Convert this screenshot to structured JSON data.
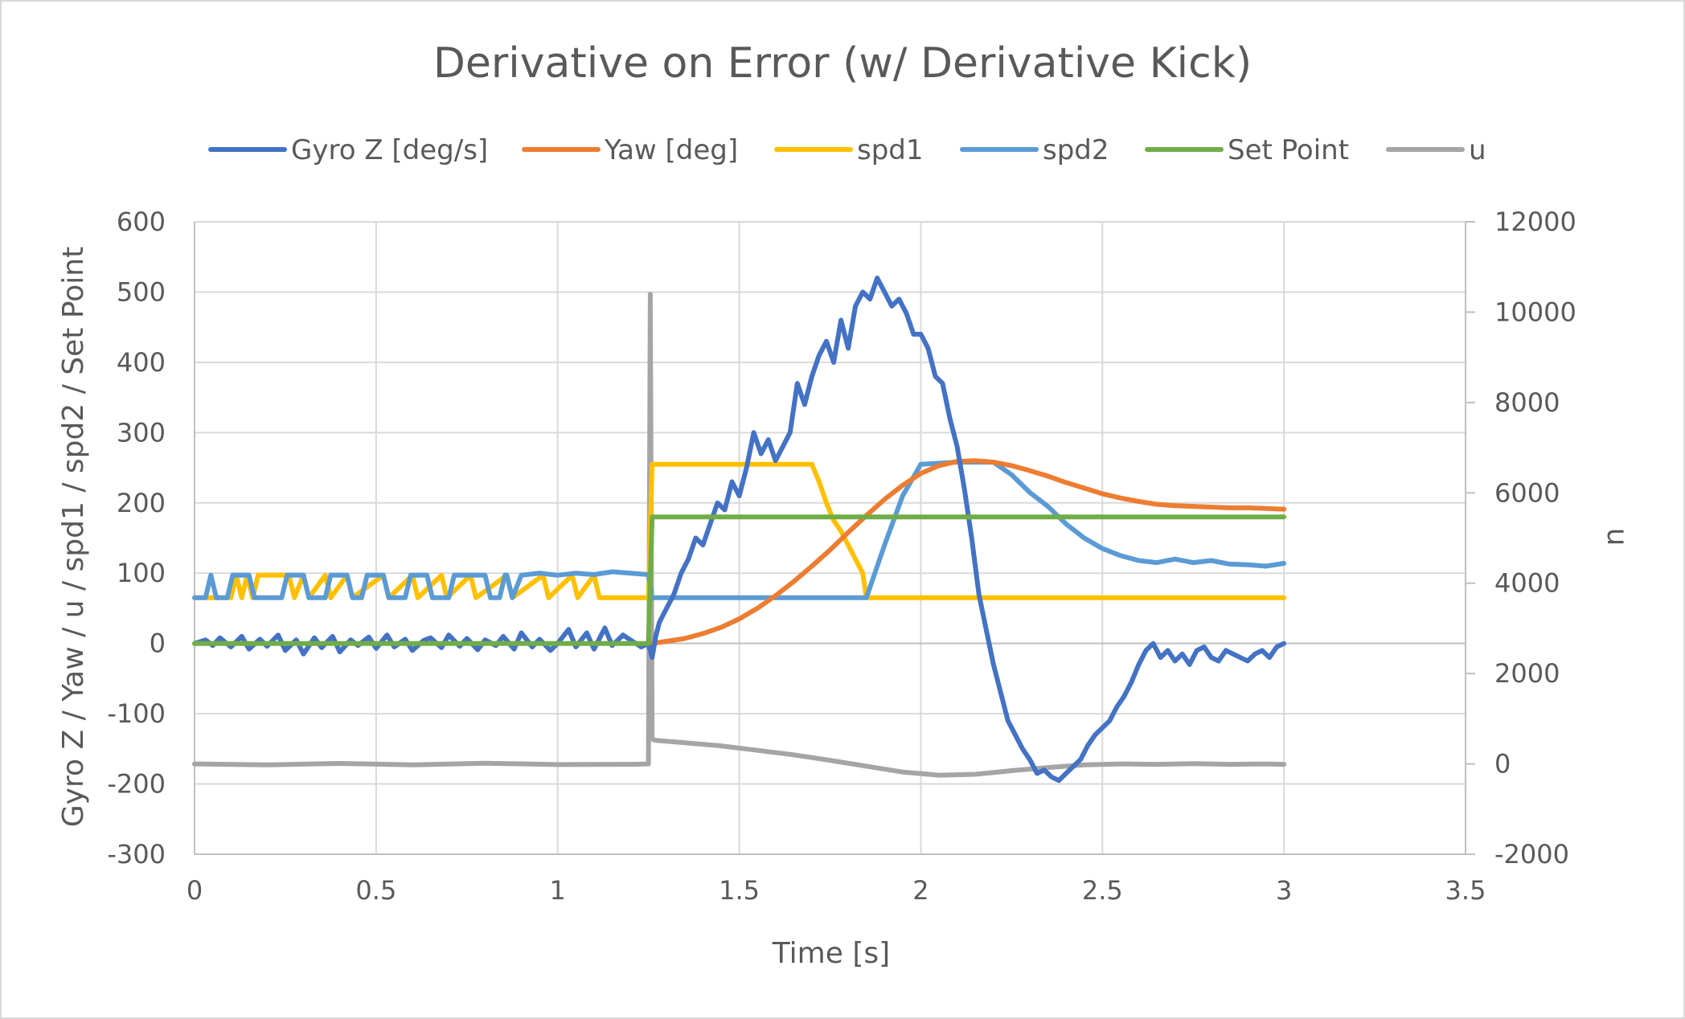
{
  "chart_data": {
    "type": "line",
    "title": "Derivative on Error (w/ Derivative Kick)",
    "xlabel": "Time [s]",
    "ylabel": "Gyro Z / Yaw / u / spd1 / spd2 / Set Point",
    "y2label": "u",
    "xlim": [
      0,
      3.5
    ],
    "ylim": [
      -300,
      600
    ],
    "y2lim": [
      -2000,
      12000
    ],
    "x_ticks": [
      "0",
      "0.5",
      "1",
      "1.5",
      "2",
      "2.5",
      "3",
      "3.5"
    ],
    "y_ticks": [
      "600",
      "500",
      "400",
      "300",
      "200",
      "100",
      "0",
      "-100",
      "-200",
      "-300"
    ],
    "y2_ticks": [
      "12000",
      "10000",
      "8000",
      "6000",
      "4000",
      "2000",
      "0",
      "-2000"
    ],
    "grid": true,
    "legend_position": "top",
    "series": [
      {
        "name": "Gyro Z [deg/s]",
        "color": "#4472c4",
        "axis": "left",
        "x": [
          0,
          0.03,
          0.05,
          0.07,
          0.1,
          0.13,
          0.15,
          0.18,
          0.2,
          0.23,
          0.25,
          0.28,
          0.3,
          0.33,
          0.35,
          0.38,
          0.4,
          0.43,
          0.45,
          0.48,
          0.5,
          0.53,
          0.55,
          0.58,
          0.6,
          0.63,
          0.65,
          0.68,
          0.7,
          0.73,
          0.75,
          0.78,
          0.8,
          0.83,
          0.85,
          0.88,
          0.9,
          0.93,
          0.95,
          0.98,
          1.0,
          1.03,
          1.05,
          1.08,
          1.1,
          1.13,
          1.15,
          1.18,
          1.2,
          1.23,
          1.25,
          1.26,
          1.27,
          1.28,
          1.3,
          1.32,
          1.34,
          1.36,
          1.38,
          1.4,
          1.42,
          1.44,
          1.46,
          1.48,
          1.5,
          1.52,
          1.54,
          1.56,
          1.58,
          1.6,
          1.62,
          1.64,
          1.66,
          1.68,
          1.7,
          1.72,
          1.74,
          1.76,
          1.78,
          1.8,
          1.82,
          1.84,
          1.86,
          1.88,
          1.9,
          1.92,
          1.94,
          1.96,
          1.98,
          2.0,
          2.02,
          2.04,
          2.06,
          2.08,
          2.1,
          2.12,
          2.14,
          2.16,
          2.18,
          2.2,
          2.22,
          2.24,
          2.26,
          2.28,
          2.3,
          2.32,
          2.34,
          2.36,
          2.38,
          2.4,
          2.42,
          2.44,
          2.46,
          2.48,
          2.5,
          2.52,
          2.54,
          2.56,
          2.58,
          2.6,
          2.62,
          2.64,
          2.66,
          2.68,
          2.7,
          2.72,
          2.74,
          2.76,
          2.78,
          2.8,
          2.82,
          2.84,
          2.86,
          2.88,
          2.9,
          2.92,
          2.94,
          2.96,
          2.98,
          3.0
        ],
        "y": [
          0,
          5,
          -3,
          8,
          -5,
          10,
          -8,
          6,
          -4,
          12,
          -10,
          5,
          -15,
          8,
          -6,
          10,
          -12,
          5,
          -3,
          9,
          -7,
          12,
          -5,
          6,
          -10,
          4,
          8,
          -6,
          12,
          -4,
          7,
          -9,
          5,
          -3,
          10,
          -8,
          15,
          -5,
          6,
          -10,
          0,
          20,
          -5,
          15,
          -8,
          22,
          -3,
          12,
          5,
          -5,
          0,
          -20,
          10,
          30,
          50,
          70,
          100,
          120,
          150,
          140,
          170,
          200,
          190,
          230,
          210,
          250,
          300,
          270,
          290,
          260,
          280,
          300,
          370,
          340,
          380,
          410,
          430,
          400,
          460,
          420,
          480,
          500,
          490,
          520,
          500,
          480,
          490,
          470,
          440,
          440,
          420,
          380,
          370,
          320,
          280,
          220,
          150,
          70,
          20,
          -30,
          -70,
          -110,
          -130,
          -150,
          -165,
          -185,
          -180,
          -190,
          -195,
          -185,
          -175,
          -165,
          -145,
          -130,
          -120,
          -110,
          -90,
          -75,
          -55,
          -30,
          -10,
          0,
          -20,
          -10,
          -25,
          -15,
          -30,
          -10,
          -5,
          -20,
          -25,
          -10,
          -15,
          -20,
          -25,
          -15,
          -10,
          -20,
          -5,
          0
        ]
      },
      {
        "name": "Yaw [deg]",
        "color": "#ed7d31",
        "axis": "left",
        "x": [
          1.26,
          1.3,
          1.35,
          1.4,
          1.45,
          1.5,
          1.55,
          1.6,
          1.65,
          1.7,
          1.75,
          1.8,
          1.85,
          1.9,
          1.95,
          2.0,
          2.05,
          2.1,
          2.15,
          2.2,
          2.25,
          2.3,
          2.35,
          2.4,
          2.45,
          2.5,
          2.55,
          2.6,
          2.65,
          2.7,
          2.75,
          2.8,
          2.85,
          2.9,
          2.95,
          3.0
        ],
        "y": [
          0,
          3,
          7,
          14,
          23,
          35,
          50,
          68,
          88,
          110,
          133,
          158,
          182,
          205,
          225,
          242,
          253,
          259,
          260,
          258,
          253,
          246,
          238,
          229,
          221,
          213,
          207,
          202,
          198,
          196,
          195,
          194,
          193,
          193,
          192,
          191
        ]
      },
      {
        "name": "spd1",
        "color": "#ffc000",
        "axis": "left",
        "x": [
          0,
          0.1,
          0.115,
          0.13,
          0.145,
          0.16,
          0.175,
          0.26,
          0.275,
          0.3,
          0.315,
          0.36,
          0.375,
          0.42,
          0.435,
          0.52,
          0.535,
          0.6,
          0.615,
          0.68,
          0.695,
          0.76,
          0.775,
          0.86,
          0.875,
          0.96,
          0.975,
          1.04,
          1.055,
          1.1,
          1.115,
          1.25,
          1.26,
          1.7,
          1.72,
          1.74,
          1.76,
          1.78,
          1.8,
          1.82,
          1.84,
          1.85,
          3.0
        ],
        "y": [
          65,
          65,
          97,
          65,
          97,
          65,
          97,
          97,
          65,
          97,
          65,
          97,
          65,
          97,
          65,
          97,
          65,
          97,
          65,
          97,
          65,
          97,
          65,
          97,
          65,
          97,
          65,
          97,
          65,
          97,
          65,
          65,
          255,
          255,
          230,
          200,
          175,
          160,
          140,
          120,
          100,
          65,
          65
        ]
      },
      {
        "name": "spd2",
        "color": "#5b9bd5",
        "axis": "left",
        "x": [
          0,
          0.03,
          0.045,
          0.06,
          0.09,
          0.105,
          0.15,
          0.165,
          0.24,
          0.255,
          0.3,
          0.315,
          0.36,
          0.375,
          0.42,
          0.435,
          0.46,
          0.475,
          0.52,
          0.535,
          0.58,
          0.595,
          0.64,
          0.655,
          0.7,
          0.715,
          0.8,
          0.815,
          0.84,
          0.855,
          0.86,
          0.875,
          0.9,
          0.95,
          1.0,
          1.05,
          1.1,
          1.15,
          1.2,
          1.25,
          1.26,
          1.85,
          1.9,
          1.95,
          2.0,
          2.1,
          2.2,
          2.25,
          2.3,
          2.35,
          2.4,
          2.45,
          2.5,
          2.55,
          2.6,
          2.65,
          2.7,
          2.75,
          2.8,
          2.85,
          2.9,
          2.95,
          3.0
        ],
        "y": [
          65,
          65,
          97,
          65,
          65,
          97,
          97,
          65,
          65,
          97,
          97,
          65,
          65,
          97,
          97,
          65,
          65,
          97,
          97,
          65,
          65,
          97,
          97,
          65,
          65,
          97,
          97,
          65,
          65,
          97,
          97,
          65,
          97,
          100,
          97,
          100,
          98,
          102,
          100,
          98,
          65,
          65,
          140,
          210,
          255,
          258,
          258,
          240,
          215,
          195,
          170,
          150,
          135,
          125,
          118,
          115,
          120,
          115,
          118,
          113,
          112,
          110,
          114
        ]
      },
      {
        "name": "Set Point",
        "color": "#70ad47",
        "axis": "left",
        "x": [
          0,
          1.25,
          1.26,
          3.0
        ],
        "y": [
          0,
          0,
          180,
          180
        ]
      },
      {
        "name": "u",
        "color": "#a5a5a5",
        "axis": "right",
        "x": [
          0,
          0.2,
          0.4,
          0.6,
          0.8,
          1.0,
          1.2,
          1.25,
          1.255,
          1.26,
          1.27,
          1.35,
          1.45,
          1.55,
          1.65,
          1.75,
          1.85,
          1.95,
          2.05,
          2.15,
          2.25,
          2.35,
          2.45,
          2.55,
          2.65,
          2.75,
          2.85,
          2.95,
          3.0
        ],
        "y": [
          0,
          -20,
          10,
          -20,
          15,
          -15,
          -10,
          0,
          10400,
          550,
          520,
          470,
          400,
          300,
          200,
          80,
          -50,
          -180,
          -250,
          -230,
          -150,
          -80,
          -20,
          0,
          -10,
          5,
          -10,
          0,
          -10
        ]
      }
    ]
  }
}
